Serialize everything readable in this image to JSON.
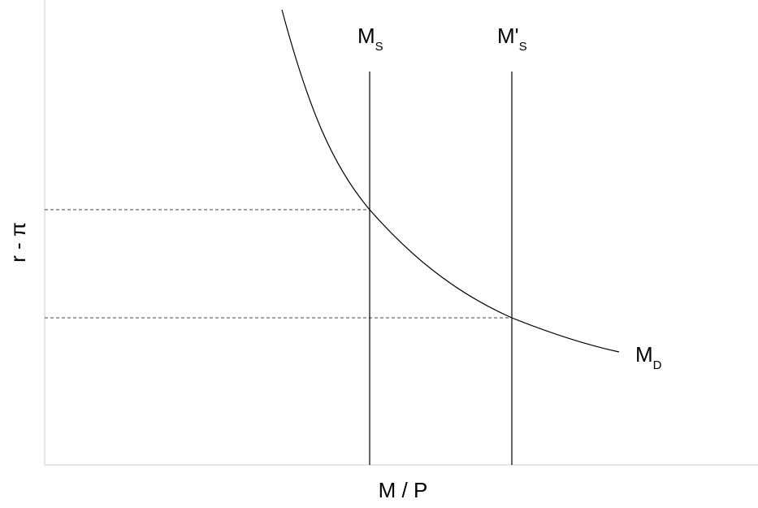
{
  "diagram": {
    "y_axis_label": "r - π",
    "x_axis_label": "M / P",
    "money_supply_label": {
      "main": "M",
      "sub": "S"
    },
    "money_supply_shifted_label": {
      "main": "M'",
      "sub": "S"
    },
    "money_demand_label": {
      "main": "M",
      "sub": "D"
    },
    "colors": {
      "line": "#000000",
      "axis": "#cccccc",
      "guide": "#444444"
    }
  }
}
